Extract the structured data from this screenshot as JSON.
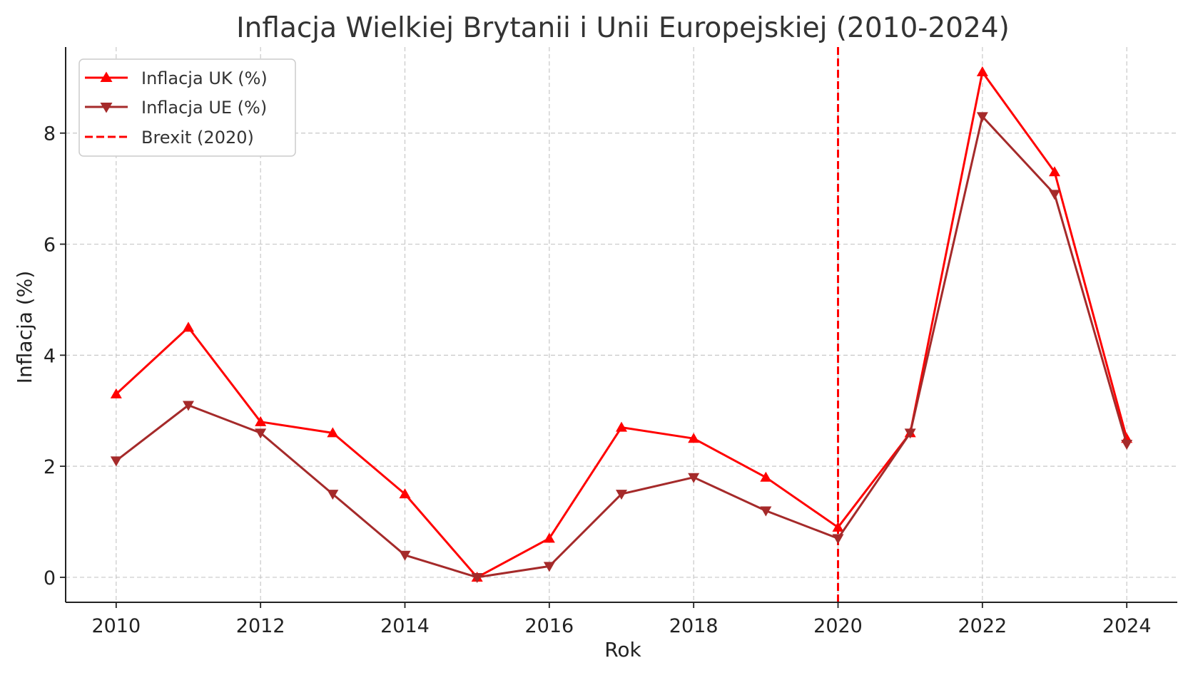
{
  "chart_data": {
    "type": "line",
    "title": "Inflacja Wielkiej Brytanii i Unii Europejskiej (2010-2024)",
    "xlabel": "Rok",
    "ylabel": "Inflacja (%)",
    "x": [
      2010,
      2011,
      2012,
      2013,
      2014,
      2015,
      2016,
      2017,
      2018,
      2019,
      2020,
      2021,
      2022,
      2023,
      2024
    ],
    "x_ticks": [
      "2010",
      "2012",
      "2014",
      "2016",
      "2018",
      "2020",
      "2022",
      "2024"
    ],
    "y_ticks": [
      "0",
      "2",
      "4",
      "6",
      "8"
    ],
    "xlim": [
      2009.3,
      2024.7
    ],
    "ylim": [
      -0.45,
      9.55
    ],
    "grid": true,
    "legend_position": "top-left",
    "series": [
      {
        "name": "Inflacja UK (%)",
        "color": "#ff0000",
        "marker": "triangle-up",
        "values": [
          3.3,
          4.5,
          2.8,
          2.6,
          1.5,
          0.0,
          0.7,
          2.7,
          2.5,
          1.8,
          0.9,
          2.6,
          9.1,
          7.3,
          2.5
        ]
      },
      {
        "name": "Inflacja UE (%)",
        "color": "#a52a2a",
        "marker": "triangle-down",
        "values": [
          2.1,
          3.1,
          2.6,
          1.5,
          0.4,
          0.0,
          0.2,
          1.5,
          1.8,
          1.2,
          0.7,
          2.6,
          8.3,
          6.9,
          2.4
        ]
      }
    ],
    "annotations": [
      {
        "type": "vline",
        "x": 2020,
        "label": "Brexit (2020)",
        "color": "#ff0000",
        "style": "dashed"
      }
    ]
  }
}
